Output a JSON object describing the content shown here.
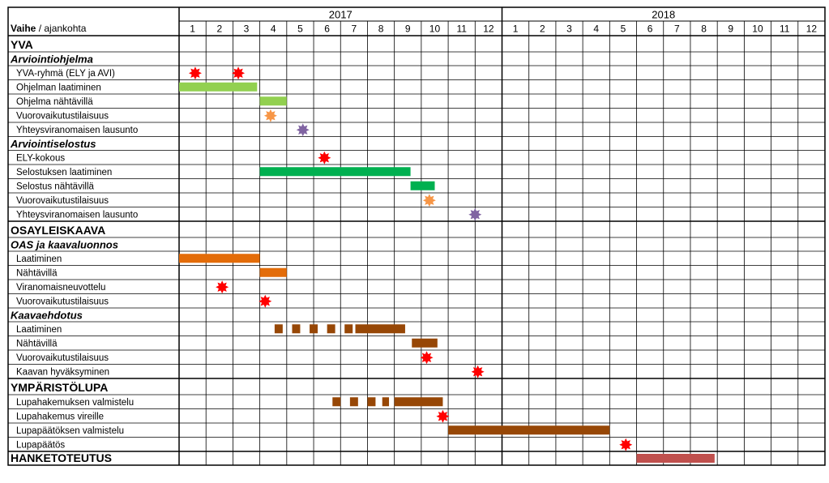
{
  "chart_data": {
    "type": "gantt",
    "header_label_bold": "Vaihe",
    "header_label_rest": " / ajankohta",
    "years": [
      "2017",
      "2018"
    ],
    "months": [
      "1",
      "2",
      "3",
      "4",
      "5",
      "6",
      "7",
      "8",
      "9",
      "10",
      "11",
      "12",
      "1",
      "2",
      "3",
      "4",
      "5",
      "6",
      "7",
      "8",
      "9",
      "10",
      "11",
      "12"
    ],
    "rows": [
      {
        "label": "YVA",
        "style": "section"
      },
      {
        "label": "Arviointiohjelma",
        "style": "subsection"
      },
      {
        "label": "YVA-ryhmä (ELY ja AVI)",
        "style": "item",
        "markers": [
          {
            "kind": "star",
            "color": "#ff0000",
            "month": 1.6
          },
          {
            "kind": "star",
            "color": "#ff0000",
            "month": 3.2
          }
        ]
      },
      {
        "label": "Ohjelman laatiminen",
        "style": "item",
        "bars": [
          {
            "start": 1.0,
            "end": 3.9,
            "color": "#92d050"
          }
        ]
      },
      {
        "label": "Ohjelma nähtävillä",
        "style": "item",
        "bars": [
          {
            "start": 4.0,
            "end": 5.0,
            "color": "#92d050"
          }
        ]
      },
      {
        "label": "Vuorovaikutustilaisuus",
        "style": "item",
        "markers": [
          {
            "kind": "star",
            "color": "#f79646",
            "month": 4.4
          }
        ]
      },
      {
        "label": "Yhteysviranomaisen lausunto",
        "style": "item",
        "markers": [
          {
            "kind": "star",
            "color": "#8064a2",
            "month": 5.6
          }
        ]
      },
      {
        "label": "Arviointiselostus",
        "style": "subsection"
      },
      {
        "label": "ELY-kokous",
        "style": "item",
        "markers": [
          {
            "kind": "star",
            "color": "#ff0000",
            "month": 6.4
          }
        ]
      },
      {
        "label": "Selostuksen laatiminen",
        "style": "item",
        "bars": [
          {
            "start": 4.0,
            "end": 9.6,
            "color": "#00b050"
          }
        ]
      },
      {
        "label": "Selostus nähtävillä",
        "style": "item",
        "bars": [
          {
            "start": 9.6,
            "end": 10.5,
            "color": "#00b050"
          }
        ]
      },
      {
        "label": "Vuorovaikutustilaisuus",
        "style": "item",
        "markers": [
          {
            "kind": "star",
            "color": "#f79646",
            "month": 10.3
          }
        ]
      },
      {
        "label": "Yhteysviranomaisen lausunto",
        "style": "item",
        "markers": [
          {
            "kind": "star",
            "color": "#8064a2",
            "month": 12.0
          }
        ]
      },
      {
        "label": "OSAYLEISKAAVA",
        "style": "section"
      },
      {
        "label": "OAS ja kaavaluonnos",
        "style": "subsection"
      },
      {
        "label": "Laatiminen",
        "style": "item",
        "bars": [
          {
            "start": 1.0,
            "end": 4.0,
            "color": "#e36c09"
          }
        ]
      },
      {
        "label": "Nähtävillä",
        "style": "item",
        "bars": [
          {
            "start": 4.0,
            "end": 5.0,
            "color": "#e36c09"
          }
        ]
      },
      {
        "label": "Viranomaisneuvottelu",
        "style": "item",
        "markers": [
          {
            "kind": "star",
            "color": "#ff0000",
            "month": 2.6
          }
        ]
      },
      {
        "label": "Vuorovaikutustilaisuus",
        "style": "item",
        "markers": [
          {
            "kind": "star",
            "color": "#ff0000",
            "month": 4.2
          }
        ]
      },
      {
        "label": "Kaavaehdotus",
        "style": "subsection"
      },
      {
        "label": "Laatiminen",
        "style": "item",
        "bars": [
          {
            "start": 4.55,
            "end": 4.85,
            "color": "#974706"
          },
          {
            "start": 5.2,
            "end": 5.5,
            "color": "#974706"
          },
          {
            "start": 5.85,
            "end": 6.15,
            "color": "#974706"
          },
          {
            "start": 6.5,
            "end": 6.8,
            "color": "#974706"
          },
          {
            "start": 7.15,
            "end": 7.45,
            "color": "#974706"
          },
          {
            "start": 7.55,
            "end": 9.4,
            "color": "#974706"
          }
        ]
      },
      {
        "label": "Nähtävillä",
        "style": "item",
        "bars": [
          {
            "start": 9.65,
            "end": 10.6,
            "color": "#974706"
          }
        ]
      },
      {
        "label": "Vuorovaikutustilaisuus",
        "style": "item",
        "markers": [
          {
            "kind": "star",
            "color": "#ff0000",
            "month": 10.2
          }
        ]
      },
      {
        "label": "Kaavan hyväksyminen",
        "style": "item",
        "markers": [
          {
            "kind": "star",
            "color": "#ff0000",
            "month": 12.1
          }
        ]
      },
      {
        "label": "YMPÄRISTÖLUPA",
        "style": "section"
      },
      {
        "label": "Lupahakemuksen valmistelu",
        "style": "item",
        "bars": [
          {
            "start": 6.7,
            "end": 7.0,
            "color": "#974706"
          },
          {
            "start": 7.35,
            "end": 7.65,
            "color": "#974706"
          },
          {
            "start": 8.0,
            "end": 8.3,
            "color": "#974706"
          },
          {
            "start": 8.55,
            "end": 8.8,
            "color": "#974706"
          },
          {
            "start": 9.0,
            "end": 10.8,
            "color": "#974706"
          }
        ]
      },
      {
        "label": "Lupahakemus vireille",
        "style": "item",
        "markers": [
          {
            "kind": "star",
            "color": "#ff0000",
            "month": 10.8
          }
        ]
      },
      {
        "label": "Lupapäätöksen valmistelu",
        "style": "item",
        "bars": [
          {
            "start": 11.0,
            "end": 17.0,
            "color": "#974706"
          }
        ]
      },
      {
        "label": "Lupapäätös",
        "style": "item",
        "markers": [
          {
            "kind": "star",
            "color": "#ff0000",
            "month": 17.6
          }
        ]
      },
      {
        "label": "HANKETOTEUTUS",
        "style": "section-last",
        "bars": [
          {
            "start": 18.0,
            "end": 20.9,
            "color": "#c0504d"
          }
        ]
      }
    ]
  }
}
